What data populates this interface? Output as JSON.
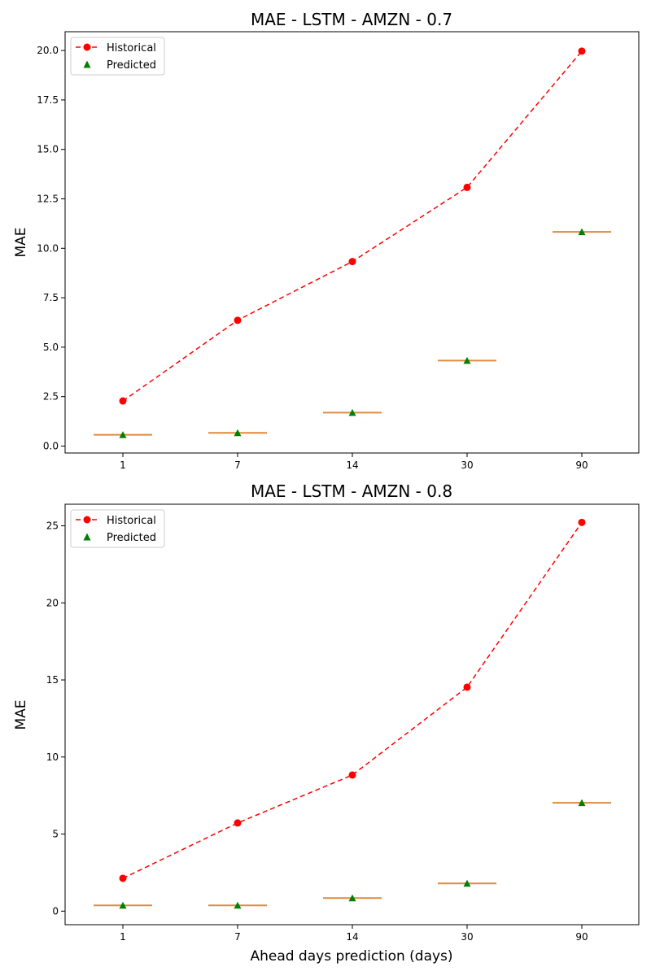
{
  "chart_data": [
    {
      "type": "line",
      "title": "MAE - LSTM - AMZN - 0.7",
      "xlabel": "",
      "ylabel": "MAE",
      "categories": [
        "1",
        "7",
        "14",
        "30",
        "90"
      ],
      "ylim": [
        -0.35,
        20.95
      ],
      "yticks": [
        "0.0",
        "2.5",
        "5.0",
        "7.5",
        "10.0",
        "12.5",
        "15.0",
        "17.5",
        "20.0"
      ],
      "legend": {
        "position": "top-left"
      },
      "series": [
        {
          "name": "Historical",
          "marker": "circle",
          "linestyle": "dashed",
          "color": "#ff0000",
          "values": [
            2.28,
            6.36,
            9.33,
            13.08,
            19.97
          ]
        },
        {
          "name": "Predicted",
          "marker": "triangle",
          "linestyle": "none",
          "color": "#008000",
          "values": [
            0.57,
            0.67,
            1.69,
            4.32,
            10.83
          ]
        }
      ],
      "box_median_color": "#e08a3c"
    },
    {
      "type": "line",
      "title": "MAE - LSTM - AMZN - 0.8",
      "xlabel": "Ahead days prediction (days)",
      "ylabel": "MAE",
      "categories": [
        "1",
        "7",
        "14",
        "30",
        "90"
      ],
      "ylim": [
        -0.88,
        26.4
      ],
      "yticks": [
        "0",
        "5",
        "10",
        "15",
        "20",
        "25"
      ],
      "legend": {
        "position": "top-left"
      },
      "series": [
        {
          "name": "Historical",
          "marker": "circle",
          "linestyle": "dashed",
          "color": "#ff0000",
          "values": [
            2.13,
            5.72,
            8.83,
            14.53,
            25.22
          ]
        },
        {
          "name": "Predicted",
          "marker": "triangle",
          "linestyle": "none",
          "color": "#008000",
          "values": [
            0.37,
            0.37,
            0.85,
            1.8,
            7.03
          ]
        }
      ],
      "box_median_color": "#e08a3c"
    }
  ]
}
